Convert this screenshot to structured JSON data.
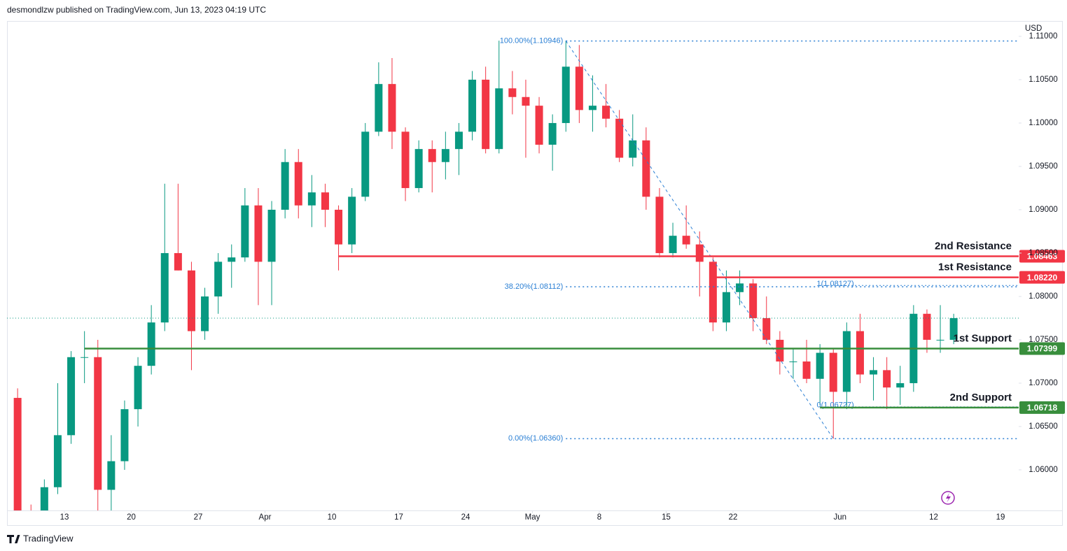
{
  "header": "desmondlzw published on TradingView.com, Jun 13, 2023 04:19 UTC",
  "brand": "TradingView",
  "chart_data": {
    "type": "candlestick",
    "currency": "USD",
    "up_color": "#089981",
    "down_color": "#f23645",
    "ylim": [
      1.05532,
      1.11177
    ],
    "yticks": [
      {
        "value": 1.06,
        "label": "1.06000"
      },
      {
        "value": 1.065,
        "label": "1.06500"
      },
      {
        "value": 1.07,
        "label": "1.07000"
      },
      {
        "value": 1.075,
        "label": "1.07500"
      },
      {
        "value": 1.08,
        "label": "1.08000"
      },
      {
        "value": 1.085,
        "label": "1.08500"
      },
      {
        "value": 1.09,
        "label": "1.09000"
      },
      {
        "value": 1.095,
        "label": "1.09500"
      },
      {
        "value": 1.1,
        "label": "1.10000"
      },
      {
        "value": 1.105,
        "label": "1.10500"
      },
      {
        "value": 1.11,
        "label": "1.11000"
      }
    ],
    "xticks": [
      {
        "value": "2023-03-13",
        "label": "13"
      },
      {
        "value": "2023-03-20",
        "label": "20"
      },
      {
        "value": "2023-03-27",
        "label": "27"
      },
      {
        "value": "2023-04-03",
        "label": "Apr"
      },
      {
        "value": "2023-04-10",
        "label": "10"
      },
      {
        "value": "2023-04-17",
        "label": "17"
      },
      {
        "value": "2023-04-24",
        "label": "24"
      },
      {
        "value": "2023-05-01",
        "label": "May"
      },
      {
        "value": "2023-05-08",
        "label": "8"
      },
      {
        "value": "2023-05-15",
        "label": "15"
      },
      {
        "value": "2023-05-22",
        "label": "22"
      },
      {
        "value": "2023-06-01",
        "label": "Jun"
      },
      {
        "value": "2023-06-12",
        "label": "12"
      },
      {
        "value": "2023-06-19",
        "label": "19"
      }
    ],
    "x": [
      "2023-03-07",
      "2023-03-08",
      "2023-03-09",
      "2023-03-10",
      "2023-03-13",
      "2023-03-14",
      "2023-03-15",
      "2023-03-16",
      "2023-03-17",
      "2023-03-20",
      "2023-03-21",
      "2023-03-22",
      "2023-03-23",
      "2023-03-24",
      "2023-03-27",
      "2023-03-28",
      "2023-03-29",
      "2023-03-30",
      "2023-03-31",
      "2023-04-03",
      "2023-04-04",
      "2023-04-05",
      "2023-04-06",
      "2023-04-07",
      "2023-04-10",
      "2023-04-11",
      "2023-04-12",
      "2023-04-13",
      "2023-04-14",
      "2023-04-17",
      "2023-04-18",
      "2023-04-19",
      "2023-04-20",
      "2023-04-21",
      "2023-04-24",
      "2023-04-25",
      "2023-04-26",
      "2023-04-27",
      "2023-04-28",
      "2023-05-01",
      "2023-05-02",
      "2023-05-03",
      "2023-05-04",
      "2023-05-05",
      "2023-05-08",
      "2023-05-09",
      "2023-05-10",
      "2023-05-11",
      "2023-05-12",
      "2023-05-15",
      "2023-05-16",
      "2023-05-17",
      "2023-05-18",
      "2023-05-19",
      "2023-05-22",
      "2023-05-23",
      "2023-05-24",
      "2023-05-25",
      "2023-05-26",
      "2023-05-29",
      "2023-05-30",
      "2023-05-31",
      "2023-06-01",
      "2023-06-02",
      "2023-06-05",
      "2023-06-06",
      "2023-06-07",
      "2023-06-08",
      "2023-06-09",
      "2023-06-12",
      "2023-06-13"
    ],
    "open": [
      1.0683,
      1.0549,
      1.0545,
      1.058,
      1.064,
      1.073,
      1.073,
      1.0577,
      1.061,
      1.067,
      1.072,
      1.077,
      1.085,
      1.083,
      1.076,
      1.08,
      1.084,
      1.0845,
      1.0905,
      1.084,
      1.09,
      1.0955,
      1.0905,
      1.092,
      1.09,
      1.086,
      1.0915,
      1.099,
      1.1045,
      1.099,
      1.0925,
      1.097,
      1.0955,
      1.097,
      1.099,
      1.105,
      1.097,
      1.104,
      1.103,
      1.102,
      1.0975,
      1.1,
      1.1065,
      1.1015,
      1.102,
      1.1005,
      1.096,
      1.098,
      1.0915,
      1.085,
      1.087,
      1.086,
      1.084,
      1.077,
      1.0805,
      1.0815,
      1.0775,
      1.075,
      1.0725,
      1.0725,
      1.0705,
      1.0735,
      1.069,
      1.076,
      1.071,
      1.0715,
      1.0695,
      1.07,
      1.078,
      1.075,
      1.075
    ],
    "high": [
      1.0694,
      1.056,
      1.0589,
      1.07,
      1.0737,
      1.076,
      1.075,
      1.064,
      1.068,
      1.073,
      1.079,
      1.093,
      1.093,
      1.084,
      1.081,
      1.085,
      1.086,
      1.0925,
      1.0925,
      1.091,
      1.097,
      1.097,
      1.094,
      1.093,
      1.0905,
      1.0925,
      1.1,
      1.107,
      1.1075,
      1.0995,
      1.098,
      1.098,
      1.099,
      1.1,
      1.106,
      1.1065,
      1.1095,
      1.106,
      1.105,
      1.103,
      1.101,
      1.1095,
      1.109,
      1.1055,
      1.1045,
      1.1015,
      1.101,
      1.0995,
      1.0925,
      1.0885,
      1.0905,
      1.0875,
      1.0845,
      1.083,
      1.083,
      1.082,
      1.08,
      1.076,
      1.074,
      1.075,
      1.0745,
      1.074,
      1.077,
      1.078,
      1.073,
      1.073,
      1.072,
      1.079,
      1.0785,
      1.079,
      1.078
    ],
    "low": [
      1.0537,
      1.0524,
      1.0539,
      1.0572,
      1.063,
      1.07,
      1.0516,
      1.055,
      1.06,
      1.065,
      1.071,
      1.076,
      1.083,
      1.0715,
      1.075,
      1.078,
      1.081,
      1.084,
      1.079,
      1.079,
      1.089,
      1.089,
      1.088,
      1.088,
      1.083,
      1.085,
      1.091,
      1.0985,
      1.097,
      1.091,
      1.092,
      1.092,
      1.0935,
      1.094,
      1.098,
      1.0965,
      1.0965,
      1.101,
      1.096,
      1.0965,
      1.0945,
      1.099,
      1.1,
      1.099,
      1.0995,
      1.0955,
      1.095,
      1.09,
      1.0845,
      1.0845,
      1.0855,
      1.08,
      1.076,
      1.076,
      1.079,
      1.076,
      1.0745,
      1.071,
      1.0705,
      1.07,
      1.0675,
      1.0636,
      1.067,
      1.07,
      1.068,
      1.067,
      1.0675,
      1.069,
      1.0735,
      1.0735,
      1.0745
    ],
    "close": [
      1.0549,
      1.0545,
      1.058,
      1.064,
      1.073,
      1.073,
      1.0577,
      1.061,
      1.067,
      1.072,
      1.077,
      1.085,
      1.083,
      1.076,
      1.08,
      1.084,
      1.0845,
      1.0905,
      1.084,
      1.09,
      1.0955,
      1.0905,
      1.092,
      1.09,
      1.086,
      1.0915,
      1.099,
      1.1045,
      1.099,
      1.0925,
      1.097,
      1.0955,
      1.097,
      1.099,
      1.105,
      1.097,
      1.104,
      1.103,
      1.102,
      1.0975,
      1.1,
      1.1065,
      1.1015,
      1.102,
      1.1005,
      1.096,
      1.098,
      1.0915,
      1.085,
      1.087,
      1.086,
      1.084,
      1.077,
      1.0805,
      1.0815,
      1.0775,
      1.075,
      1.0725,
      1.0725,
      1.0705,
      1.0735,
      1.069,
      1.076,
      1.071,
      1.0715,
      1.0695,
      1.07,
      1.078,
      1.075,
      1.075,
      1.0775
    ],
    "levels": [
      {
        "name": "2nd Resistance",
        "value": 1.08463,
        "value_label": "1.08463",
        "color": "#f23645",
        "start": "2023-04-10"
      },
      {
        "name": "1st Resistance",
        "value": 1.0822,
        "value_label": "1.08220",
        "color": "#f23645",
        "start": "2023-05-18"
      },
      {
        "name": "1st Support",
        "value": 1.07399,
        "value_label": "1.07399",
        "color": "#388e3c",
        "start": "2023-03-14"
      },
      {
        "name": "2nd Support",
        "value": 1.06718,
        "value_label": "1.06718",
        "color": "#388e3c",
        "start": "2023-05-30"
      }
    ],
    "fib": {
      "start": "2023-05-03",
      "end": "2023-05-31",
      "color": "#2a7fd4",
      "levels": [
        {
          "label": "100.00%(1.10946)",
          "value": 1.10946
        },
        {
          "label": "38.20%(1.08112)",
          "value": 1.08112
        },
        {
          "label": "0.00%(1.06360)",
          "value": 1.0636
        }
      ]
    },
    "fib2": {
      "start": "2023-05-30",
      "color": "#2a7fd4",
      "levels": [
        {
          "label": "1(1.08127)",
          "value": 1.08127
        },
        {
          "label": "0(1.06727)",
          "value": 1.06727
        }
      ]
    }
  }
}
